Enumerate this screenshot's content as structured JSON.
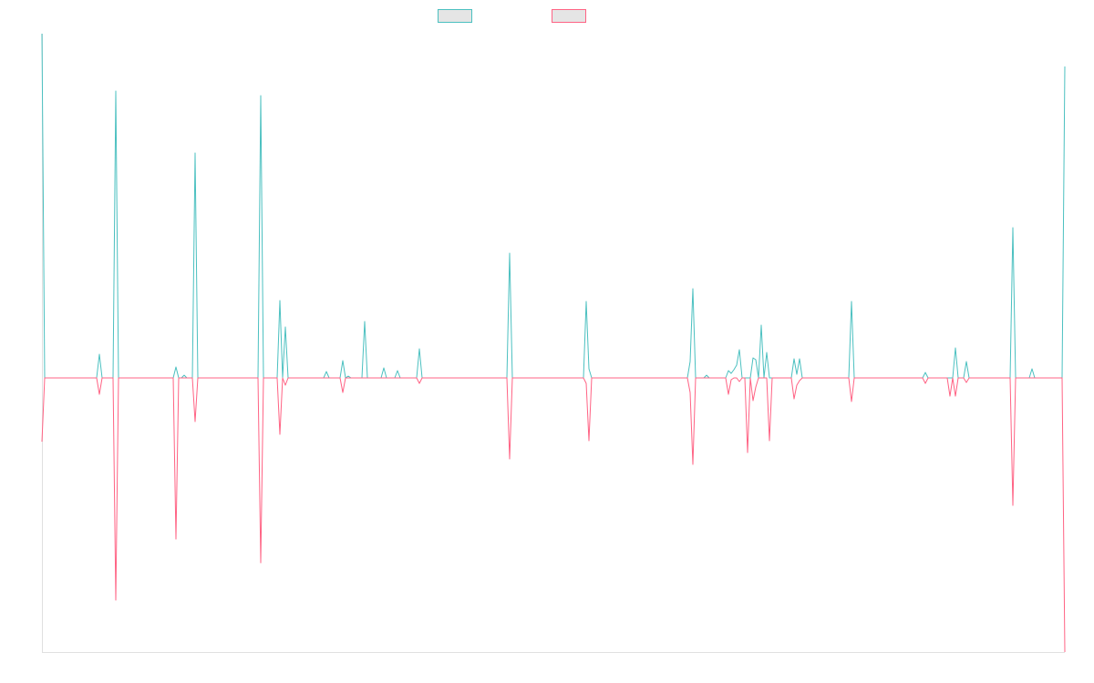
{
  "chart_data": {
    "type": "line",
    "title": "",
    "xlabel": "",
    "ylabel": "",
    "length": 375,
    "ylim": [
      -301,
      378
    ],
    "grid": false,
    "legend_position": "top",
    "series": [
      {
        "name": "",
        "color": "#4bc0c0",
        "points": [
          [
            0,
            378
          ],
          [
            21,
            26
          ],
          [
            27,
            315
          ],
          [
            49,
            12
          ],
          [
            52,
            3
          ],
          [
            56,
            247
          ],
          [
            80,
            310
          ],
          [
            87,
            85
          ],
          [
            89,
            56
          ],
          [
            104,
            7
          ],
          [
            110,
            19
          ],
          [
            112,
            2
          ],
          [
            118,
            62
          ],
          [
            125,
            11
          ],
          [
            130,
            8
          ],
          [
            138,
            32
          ],
          [
            171,
            137
          ],
          [
            199,
            84
          ],
          [
            200,
            10
          ],
          [
            237,
            18
          ],
          [
            238,
            98
          ],
          [
            243,
            3
          ],
          [
            251,
            8
          ],
          [
            252,
            5
          ],
          [
            253,
            9
          ],
          [
            254,
            14
          ],
          [
            255,
            31
          ],
          [
            260,
            22
          ],
          [
            261,
            20
          ],
          [
            263,
            58
          ],
          [
            265,
            28
          ],
          [
            275,
            21
          ],
          [
            276,
            4
          ],
          [
            277,
            21
          ],
          [
            296,
            84
          ],
          [
            323,
            6
          ],
          [
            334,
            33
          ],
          [
            338,
            18
          ],
          [
            355,
            165
          ],
          [
            362,
            10
          ],
          [
            374,
            342
          ]
        ]
      },
      {
        "name": "",
        "color": "#ff6384",
        "points": [
          [
            0,
            -70
          ],
          [
            21,
            -18
          ],
          [
            27,
            -244
          ],
          [
            49,
            -177
          ],
          [
            56,
            -48
          ],
          [
            80,
            -203
          ],
          [
            87,
            -62
          ],
          [
            89,
            -8
          ],
          [
            110,
            -16
          ],
          [
            138,
            -6
          ],
          [
            171,
            -89
          ],
          [
            199,
            -6
          ],
          [
            200,
            -69
          ],
          [
            237,
            -16
          ],
          [
            238,
            -95
          ],
          [
            251,
            -18
          ],
          [
            252,
            -2
          ],
          [
            255,
            -4
          ],
          [
            258,
            -82
          ],
          [
            260,
            -25
          ],
          [
            261,
            -10
          ],
          [
            266,
            -69
          ],
          [
            275,
            -23
          ],
          [
            276,
            -8
          ],
          [
            277,
            -3
          ],
          [
            296,
            -26
          ],
          [
            323,
            -6
          ],
          [
            332,
            -20
          ],
          [
            334,
            -20
          ],
          [
            338,
            -5
          ],
          [
            355,
            -140
          ],
          [
            374,
            -301
          ]
        ]
      }
    ]
  }
}
